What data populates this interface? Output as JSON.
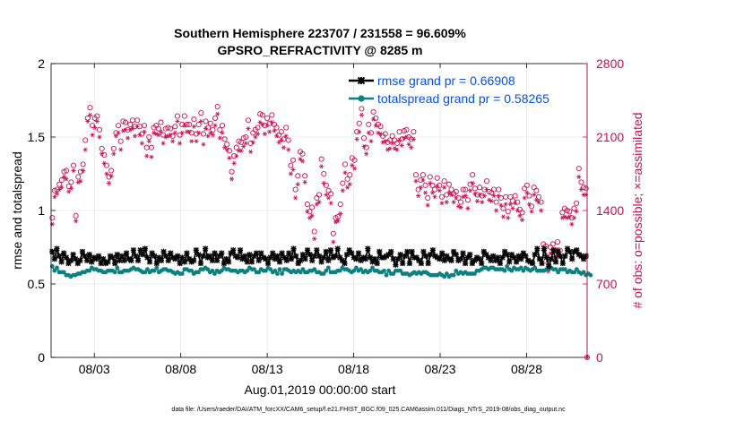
{
  "chart_data": {
    "type": "line",
    "title_line1": "Southern Hemisphere 223707 / 231558 = 96.609%",
    "title_line2": "GPSRO_REFRACTIVITY @ 8285 m",
    "xlabel": "Aug.01,2019 00:00:00 start",
    "ylabel_left": "rmse and totalspread",
    "ylabel_right": "# of obs: o=possible; ×=assimilated",
    "footer": "data file: /Users/raeder/DAI/ATM_forcXX/CAM6_setup/f.e21.FHIST_BGC.f09_025.CAM6assim.011/Diags_NTrS_2019-08/obs_diag_output.nc",
    "x_range_days": [
      0.0,
      31.0
    ],
    "x_ticks": [
      {
        "day": 2.5,
        "label": "08/03"
      },
      {
        "day": 7.5,
        "label": "08/08"
      },
      {
        "day": 12.5,
        "label": "08/13"
      },
      {
        "day": 17.5,
        "label": "08/18"
      },
      {
        "day": 22.5,
        "label": "08/23"
      },
      {
        "day": 27.5,
        "label": "08/28"
      }
    ],
    "ylim_left": [
      0,
      2
    ],
    "y_ticks_left": [
      0,
      0.5,
      1,
      1.5,
      2
    ],
    "y_tick_labels_left": [
      "0",
      "0.5",
      "1",
      "1.5",
      "2"
    ],
    "ylim_right": [
      0,
      2800
    ],
    "y_ticks_right": [
      0,
      700,
      1400,
      2100,
      2800
    ],
    "y_tick_labels_right": [
      "0",
      "700",
      "1400",
      "2100",
      "2800"
    ],
    "legend": [
      {
        "name": "rmse grand pr = 0.66908",
        "color": "#000000"
      },
      {
        "name": "totalspread grand pr = 0.58265",
        "color": "#0d8080"
      }
    ],
    "colors": {
      "rmse": "#000000",
      "spread": "#0d8080",
      "obs": "#c8104e",
      "legend_text": "#0a50e0"
    },
    "series": [
      {
        "name": "rmse",
        "values": [
          0.72,
          0.67,
          0.74,
          0.69,
          0.65,
          0.71,
          0.68,
          0.64,
          0.66,
          0.7,
          0.67,
          0.64,
          0.66,
          0.72,
          0.69,
          0.66,
          0.7,
          0.65,
          0.68,
          0.67,
          0.69,
          0.64,
          0.67,
          0.64,
          0.65,
          0.69,
          0.68,
          0.64,
          0.7,
          0.66,
          0.69,
          0.66,
          0.71,
          0.67,
          0.66,
          0.73,
          0.69,
          0.66,
          0.73,
          0.7,
          0.74,
          0.68,
          0.65,
          0.71,
          0.69,
          0.64,
          0.68,
          0.66,
          0.72,
          0.69,
          0.66,
          0.71,
          0.68,
          0.67,
          0.69,
          0.64,
          0.68,
          0.65,
          0.71,
          0.67,
          0.65,
          0.66,
          0.73,
          0.7,
          0.64,
          0.69,
          0.74,
          0.68,
          0.69,
          0.66,
          0.71,
          0.66,
          0.69,
          0.71,
          0.64,
          0.67,
          0.65,
          0.71,
          0.73,
          0.69,
          0.68,
          0.73,
          0.67,
          0.69,
          0.65,
          0.7,
          0.65,
          0.69,
          0.71,
          0.66,
          0.71,
          0.68,
          0.67,
          0.64,
          0.68,
          0.71,
          0.67,
          0.69,
          0.65,
          0.71,
          0.68,
          0.66,
          0.71,
          0.67,
          0.74,
          0.69,
          0.64,
          0.66,
          0.7,
          0.67,
          0.73,
          0.7,
          0.66,
          0.69,
          0.73,
          0.69,
          0.65,
          0.68,
          0.72,
          0.66,
          0.73,
          0.68,
          0.69,
          0.74,
          0.68,
          0.66,
          0.64,
          0.7,
          0.73,
          0.71,
          0.68,
          0.67,
          0.71,
          0.66,
          0.68,
          0.67,
          0.74,
          0.68,
          0.65,
          0.67,
          0.64,
          0.72,
          0.68,
          0.68,
          0.69,
          0.7,
          0.72,
          0.67,
          0.63,
          0.67,
          0.7,
          0.64,
          0.69,
          0.72,
          0.64,
          0.72,
          0.68,
          0.68,
          0.66,
          0.64,
          0.72,
          0.69,
          0.64,
          0.7,
          0.73,
          0.69,
          0.68,
          0.67,
          0.71,
          0.66,
          0.69,
          0.67,
          0.66,
          0.72,
          0.7,
          0.66,
          0.67,
          0.71,
          0.64,
          0.68,
          0.7,
          0.64,
          0.66,
          0.68,
          0.67,
          0.64,
          0.72,
          0.7,
          0.68,
          0.66,
          0.69,
          0.66,
          0.68,
          0.64,
          0.68,
          0.72,
          0.7,
          0.65,
          0.7,
          0.68,
          0.65,
          0.69,
          0.67,
          0.71,
          0.69,
          0.66,
          0.65,
          0.64,
          0.7,
          0.74,
          0.67,
          0.64,
          0.74,
          0.68,
          0.62,
          0.67,
          0.73,
          0.65,
          0.72,
          0.69,
          0.64,
          0.69,
          0.74,
          0.72,
          0.67,
          0.72,
          0.73,
          0.7,
          0.69,
          0.67,
          0.69
        ]
      },
      {
        "name": "totalspread",
        "values": [
          0.62,
          0.59,
          0.61,
          0.58,
          0.58,
          0.58,
          0.56,
          0.56,
          0.55,
          0.56,
          0.56,
          0.57,
          0.57,
          0.58,
          0.58,
          0.59,
          0.59,
          0.61,
          0.6,
          0.6,
          0.59,
          0.59,
          0.58,
          0.58,
          0.59,
          0.59,
          0.59,
          0.58,
          0.61,
          0.58,
          0.58,
          0.59,
          0.59,
          0.59,
          0.6,
          0.61,
          0.6,
          0.6,
          0.59,
          0.58,
          0.58,
          0.6,
          0.58,
          0.59,
          0.59,
          0.61,
          0.58,
          0.59,
          0.6,
          0.6,
          0.59,
          0.59,
          0.58,
          0.57,
          0.58,
          0.57,
          0.57,
          0.6,
          0.6,
          0.59,
          0.59,
          0.57,
          0.58,
          0.58,
          0.6,
          0.6,
          0.61,
          0.6,
          0.58,
          0.59,
          0.57,
          0.59,
          0.58,
          0.59,
          0.61,
          0.6,
          0.6,
          0.59,
          0.59,
          0.59,
          0.58,
          0.59,
          0.59,
          0.58,
          0.59,
          0.61,
          0.6,
          0.6,
          0.58,
          0.58,
          0.6,
          0.59,
          0.59,
          0.61,
          0.6,
          0.58,
          0.59,
          0.57,
          0.6,
          0.57,
          0.6,
          0.6,
          0.59,
          0.58,
          0.59,
          0.58,
          0.59,
          0.58,
          0.6,
          0.58,
          0.58,
          0.59,
          0.59,
          0.6,
          0.58,
          0.58,
          0.57,
          0.57,
          0.59,
          0.61,
          0.58,
          0.58,
          0.58,
          0.59,
          0.59,
          0.61,
          0.6,
          0.6,
          0.59,
          0.58,
          0.59,
          0.61,
          0.59,
          0.6,
          0.58,
          0.59,
          0.58,
          0.59,
          0.61,
          0.59,
          0.59,
          0.58,
          0.58,
          0.59,
          0.56,
          0.59,
          0.57,
          0.57,
          0.59,
          0.59,
          0.59,
          0.57,
          0.57,
          0.57,
          0.56,
          0.57,
          0.58,
          0.57,
          0.58,
          0.57,
          0.58,
          0.58,
          0.57,
          0.56,
          0.56,
          0.56,
          0.56,
          0.57,
          0.56,
          0.55,
          0.57,
          0.55,
          0.56,
          0.56,
          0.59,
          0.57,
          0.58,
          0.57,
          0.58,
          0.57,
          0.57,
          0.57,
          0.57,
          0.59,
          0.59,
          0.6,
          0.61,
          0.61,
          0.6,
          0.61,
          0.61,
          0.6,
          0.6,
          0.6,
          0.6,
          0.59,
          0.62,
          0.6,
          0.59,
          0.61,
          0.6,
          0.6,
          0.61,
          0.59,
          0.61,
          0.6,
          0.59,
          0.6,
          0.61,
          0.59,
          0.59,
          0.59,
          0.59,
          0.6,
          0.6,
          0.61,
          0.6,
          0.6,
          0.58,
          0.6,
          0.6,
          0.6,
          0.58,
          0.59,
          0.58,
          0.58,
          0.6,
          0.58,
          0.57,
          0.58,
          0.56,
          0.57,
          0.56
        ]
      },
      {
        "name": "obs_possible",
        "values": [
          1330,
          1590,
          1600,
          1650,
          1690,
          1770,
          1780,
          1630,
          1670,
          1830,
          1350,
          1720,
          1770,
          1840,
          2070,
          2280,
          2380,
          2210,
          2280,
          2300,
          2170,
          1990,
          1930,
          1830,
          1720,
          1780,
          1990,
          2140,
          2210,
          2060,
          2250,
          2240,
          2170,
          2220,
          2260,
          2200,
          2260,
          2200,
          2130,
          2210,
          2000,
          2100,
          2000,
          2190,
          2210,
          2180,
          2240,
          2120,
          2180,
          2190,
          2180,
          2110,
          2200,
          2300,
          2120,
          2220,
          2300,
          2220,
          2220,
          2140,
          2270,
          2130,
          2220,
          2330,
          2130,
          2250,
          2190,
          2230,
          2170,
          2280,
          2390,
          2170,
          2210,
          2080,
          2030,
          1970,
          1770,
          1920,
          2000,
          2060,
          2050,
          2090,
          2100,
          2260,
          2040,
          2140,
          2170,
          2190,
          2320,
          2310,
          2210,
          2280,
          2230,
          2310,
          2220,
          2190,
          2120,
          2150,
          2080,
          2190,
          2070,
          1830,
          1880,
          1600,
          1730,
          1960,
          1940,
          1730,
          1460,
          1390,
          1430,
          1200,
          1520,
          1550,
          1890,
          1750,
          1640,
          1590,
          1560,
          1180,
          1330,
          1340,
          1460,
          1660,
          1840,
          1700,
          1740,
          1900,
          1880,
          2150,
          2230,
          2370,
          2090,
          2000,
          2220,
          2140,
          2340,
          2280,
          2220,
          2200,
          2110,
          2130,
          2050,
          2070,
          2110,
          2070,
          2040,
          2150,
          2080,
          2160,
          2170,
          2100,
          2080,
          2150,
          1740,
          1600,
          1690,
          1740,
          1640,
          1520,
          1720,
          1640,
          1600,
          1710,
          1640,
          1530,
          1680,
          1550,
          1650,
          1600,
          1560,
          1580,
          1520,
          1480,
          1600,
          1600,
          1500,
          1650,
          1740,
          1610,
          1550,
          1620,
          1540,
          1600,
          1680,
          1580,
          1570,
          1600,
          1480,
          1600,
          1520,
          1420,
          1530,
          1390,
          1530,
          1490,
          1540,
          1480,
          1410,
          1380,
          1610,
          1640,
          1540,
          1440,
          1620,
          1590,
          1530,
          1480,
          1080,
          1060,
          900,
          1050,
          1080,
          1020,
          1100,
          1020,
          1380,
          1420,
          1400,
          1390,
          1330,
          1420,
          1470,
          1800,
          1670,
          1620,
          1610,
          0
        ]
      },
      {
        "name": "obs_assimilated",
        "values": [
          1270,
          1530,
          1560,
          1600,
          1620,
          1720,
          1700,
          1580,
          1610,
          1780,
          1300,
          1670,
          1680,
          1780,
          1980,
          2250,
          2310,
          2120,
          2190,
          2250,
          2100,
          1940,
          1850,
          1750,
          1660,
          1730,
          1940,
          2110,
          2140,
          1980,
          2160,
          2170,
          2090,
          2170,
          2180,
          2110,
          2200,
          2120,
          2040,
          2150,
          1920,
          2060,
          1910,
          2140,
          2130,
          2120,
          2150,
          2040,
          2100,
          2110,
          2120,
          2060,
          2140,
          2250,
          2040,
          2140,
          2210,
          2150,
          2150,
          2060,
          2200,
          2060,
          2140,
          2250,
          2030,
          2180,
          2110,
          2140,
          2120,
          2210,
          2320,
          2090,
          2140,
          2000,
          1980,
          1900,
          1700,
          1850,
          1920,
          1970,
          1970,
          2010,
          2040,
          2180,
          1960,
          2050,
          2100,
          2130,
          2240,
          2220,
          2130,
          2210,
          2150,
          2240,
          2160,
          2110,
          2050,
          2070,
          2000,
          2110,
          1980,
          1750,
          1790,
          1520,
          1650,
          1890,
          1870,
          1670,
          1390,
          1330,
          1350,
          1130,
          1460,
          1480,
          1820,
          1660,
          1550,
          1520,
          1470,
          1100,
          1290,
          1300,
          1370,
          1590,
          1760,
          1620,
          1650,
          1830,
          1800,
          2080,
          2150,
          2310,
          2010,
          1940,
          2140,
          2060,
          2270,
          2210,
          2140,
          2130,
          2050,
          2060,
          1980,
          1990,
          2040,
          1990,
          1980,
          2070,
          2020,
          2090,
          2100,
          2030,
          2000,
          2080,
          1680,
          1540,
          1620,
          1690,
          1570,
          1450,
          1660,
          1570,
          1530,
          1630,
          1590,
          1470,
          1620,
          1480,
          1570,
          1550,
          1480,
          1520,
          1440,
          1430,
          1530,
          1540,
          1420,
          1590,
          1660,
          1560,
          1490,
          1550,
          1480,
          1540,
          1600,
          1500,
          1490,
          1540,
          1400,
          1540,
          1450,
          1340,
          1460,
          1330,
          1460,
          1420,
          1470,
          1400,
          1350,
          1310,
          1520,
          1570,
          1460,
          1390,
          1550,
          1500,
          1480,
          1400,
          1020,
          980,
          820,
          990,
          1000,
          960,
          1030,
          960,
          1330,
          1340,
          1330,
          1340,
          1270,
          1330,
          1390,
          1720,
          1600,
          1550,
          1550,
          0
        ]
      }
    ]
  }
}
